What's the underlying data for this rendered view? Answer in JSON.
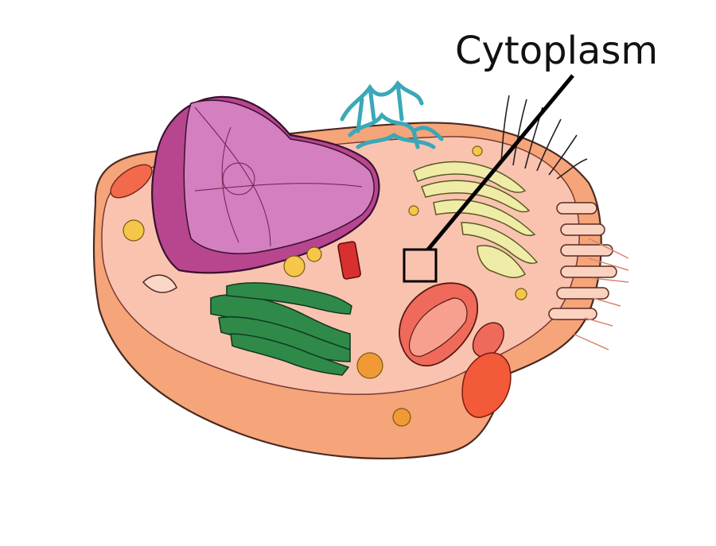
{
  "diagram": {
    "callout": {
      "label": "Cytoplasm"
    }
  },
  "colors": {
    "background": "#ffffff",
    "outer_body": "#f8a77e",
    "cytoplasm_top": "#f9c6b3",
    "nucleus": "#b94a8f",
    "nucleus_light": "#d98ac4",
    "chloroplast_like_stack": "#2f8f4e",
    "golgi": "#efeeaa",
    "mitochondrion": "#ef6a5b",
    "lysosome_red": "#f25a3d",
    "vesicle_yellow": "#f6c64a",
    "vesicle_orange": "#f19a35",
    "ribosome_blue": "#4ab4bf",
    "callout_line": "#000000"
  }
}
